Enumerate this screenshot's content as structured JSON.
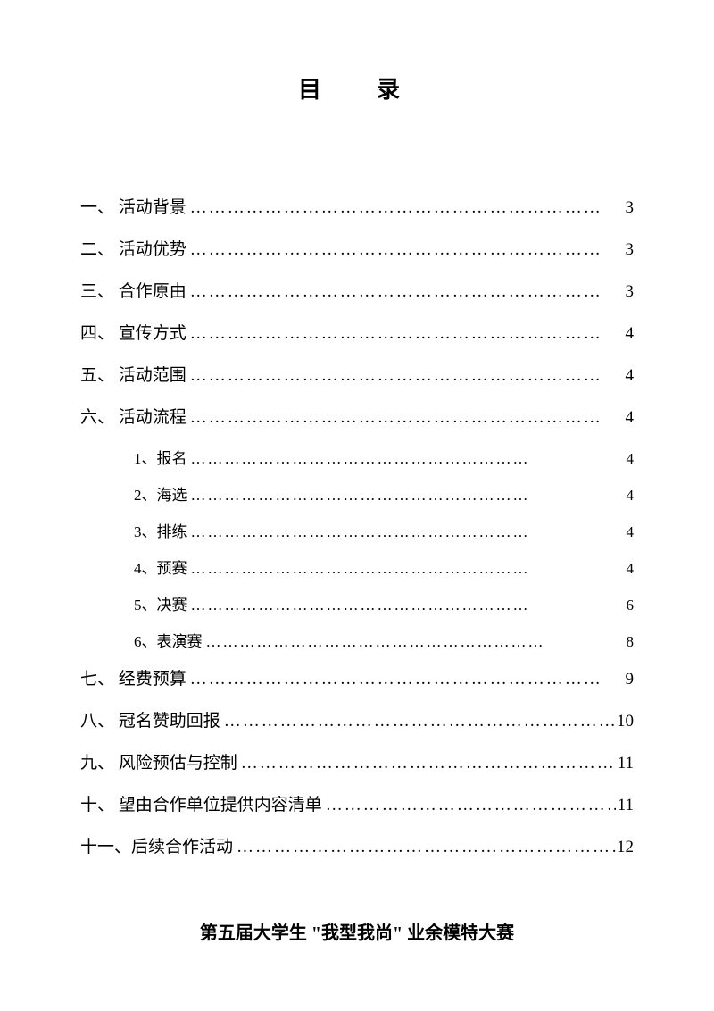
{
  "title": "目　录",
  "footer": "第五届大学生 \"我型我尚\" 业余模特大赛",
  "dots_main": "…………………………………………………………",
  "dots_sub": "……………………………………………………",
  "toc": [
    {
      "label": "一、 活动背景",
      "page": "3",
      "sub": false
    },
    {
      "label": "二、 活动优势",
      "page": "3",
      "sub": false
    },
    {
      "label": "三、 合作原由",
      "page": "3",
      "sub": false
    },
    {
      "label": "四、 宣传方式",
      "page": "4",
      "sub": false
    },
    {
      "label": "五、 活动范围",
      "page": "4",
      "sub": false
    },
    {
      "label": "六、 活动流程",
      "page": "4",
      "sub": false
    },
    {
      "label": "1、报名",
      "page": "4",
      "sub": true
    },
    {
      "label": "2、海选",
      "page": "4",
      "sub": true
    },
    {
      "label": "3、排练",
      "page": "4",
      "sub": true
    },
    {
      "label": "4、预赛",
      "page": "4",
      "sub": true
    },
    {
      "label": "5、决赛",
      "page": "6",
      "sub": true
    },
    {
      "label": "6、表演赛",
      "page": "8",
      "sub": true
    },
    {
      "label": "七、 经费预算",
      "page": "9",
      "sub": false
    },
    {
      "label": "八、 冠名赞助回报",
      "page": "10",
      "sub": false
    },
    {
      "label": "九、 风险预估与控制 ",
      "page": "11",
      "sub": false
    },
    {
      "label": "十、 望由合作单位提供内容清单 ",
      "page": "11",
      "sub": false
    },
    {
      "label": "十一、后续合作活动 ",
      "page": "12",
      "sub": false
    }
  ]
}
